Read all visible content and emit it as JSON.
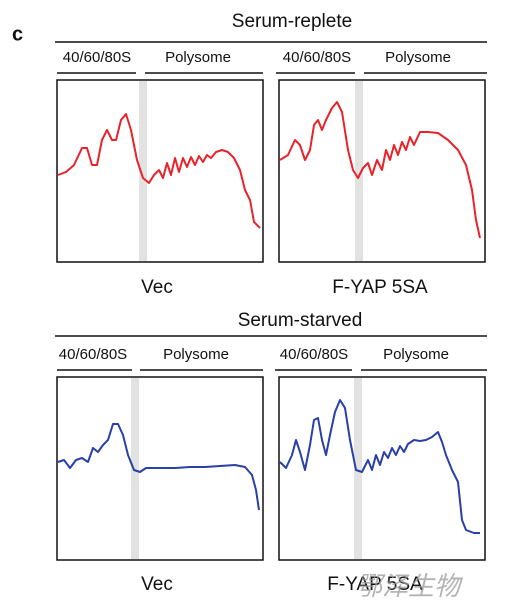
{
  "label": "c",
  "panels": [
    {
      "title": "Serum-replete",
      "plots": [
        {
          "region_labels": [
            "40/60/80S",
            "Polysome"
          ],
          "caption": "Vec"
        },
        {
          "region_labels": [
            "40/60/80S",
            "Polysome"
          ],
          "caption": "F-YAP 5SA"
        }
      ]
    },
    {
      "title": "Serum-starved",
      "plots": [
        {
          "region_labels": [
            "40/60/80S",
            "Polysome"
          ],
          "caption": "Vec"
        },
        {
          "region_labels": [
            "40/60/80S",
            "Polysome"
          ],
          "caption": "F-YAP 5SA"
        }
      ]
    }
  ],
  "watermark": "鄂泽生物"
}
